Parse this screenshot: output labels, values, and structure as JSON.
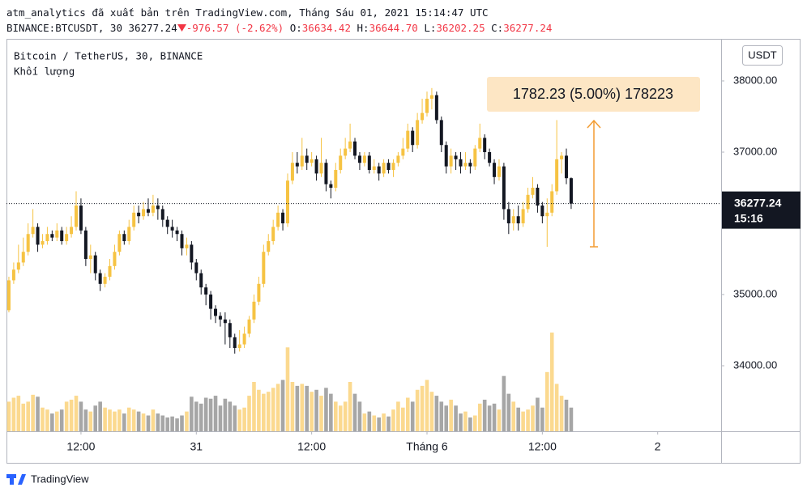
{
  "header": {
    "publisher": "atm_analytics đã xuất bản trên TradingView.com, Tháng Sáu 01, 2021 15:14:47 UTC",
    "symbol": "BINANCE:BTCUSDT, 30",
    "change": "-976.57 (-2.62%)",
    "ohlc": [
      {
        "label": "O:",
        "value": "36634.42"
      },
      {
        "label": "H:",
        "value": "36644.70"
      },
      {
        "label": "L:",
        "value": "36202.25"
      },
      {
        "label": "C:",
        "value": "36277.24"
      }
    ]
  },
  "footer": "TradingView",
  "chart_data": {
    "type": "candlestick",
    "title": "Bitcoin / TetherUS, 30, BINANCE",
    "volume_label": "Khối lượng",
    "currency": "USDT",
    "countdown": "15:16",
    "annotation": "1782.23 (5.00%) 178223",
    "up_color": "#f6c343",
    "down_color": "#131722",
    "volume_up_color": "#fbd98f",
    "volume_down_color": "#a6a6a6",
    "xlim": [
      -0.5,
      148.2
    ],
    "xticks": [
      {
        "value": 15,
        "label": "12:00"
      },
      {
        "value": 39,
        "label": "31"
      },
      {
        "value": 63,
        "label": "12:00"
      },
      {
        "value": 87,
        "label": "Tháng 6"
      },
      {
        "value": 111,
        "label": "12:00"
      },
      {
        "value": 135,
        "label": "2"
      }
    ],
    "ylim": [
      33080,
      38591
    ],
    "yticks": [
      {
        "value": 34000,
        "label": "34000.00"
      },
      {
        "value": 35000,
        "label": "35000.00"
      },
      {
        "value": 37000,
        "label": "37000.00"
      },
      {
        "value": 38000,
        "label": "38000.00"
      }
    ],
    "open": [
      34780,
      35200,
      35350,
      35450,
      35600,
      35850,
      35950,
      35700,
      35750,
      35850,
      35800,
      35900,
      35750,
      35850,
      35950,
      36250,
      35900,
      35500,
      35550,
      35300,
      35150,
      35250,
      35400,
      35600,
      35850,
      35750,
      35950,
      36150,
      36100,
      36200,
      36150,
      36250,
      36200,
      36050,
      35950,
      35900,
      35850,
      35650,
      35700,
      35450,
      35300,
      35100,
      35000,
      34800,
      34700,
      34650,
      34600,
      34400,
      34250,
      34300,
      34450,
      34650,
      34900,
      35150,
      35600,
      35750,
      35950,
      36150,
      36000,
      36600,
      36850,
      36800,
      36950,
      36850,
      36900,
      36700,
      36850,
      36550,
      36500,
      36750,
      36950,
      37050,
      37150,
      36950,
      36850,
      36950,
      36750,
      36800,
      36700,
      36850,
      36750,
      36850,
      36950,
      37050,
      37300,
      37100,
      37450,
      37550,
      37750,
      37800,
      37450,
      37100,
      36800,
      36950,
      36900,
      36800,
      36850,
      36800,
      37050,
      37200,
      37000,
      36850,
      36650,
      36800,
      36200,
      36000,
      36100,
      36000,
      36200,
      36400,
      36500,
      36250,
      36100,
      36150,
      36450,
      36900,
      36950,
      36634.42
    ],
    "high": [
      35250,
      35450,
      35700,
      35800,
      36000,
      36200,
      36000,
      35850,
      35950,
      35900,
      36000,
      35950,
      35950,
      36100,
      36450,
      36350,
      35950,
      35700,
      35600,
      35350,
      35300,
      35500,
      35700,
      35900,
      35900,
      36050,
      36250,
      36250,
      36300,
      36350,
      36400,
      36350,
      36250,
      36100,
      36050,
      35950,
      35900,
      35800,
      35750,
      35500,
      35350,
      35150,
      35050,
      34850,
      34750,
      34750,
      34650,
      34450,
      34500,
      34550,
      34700,
      35000,
      35250,
      35700,
      35850,
      36050,
      36250,
      36200,
      36700,
      37000,
      37000,
      37200,
      37050,
      37000,
      36950,
      37200,
      36900,
      36600,
      36850,
      37050,
      37200,
      37400,
      37200,
      37000,
      37000,
      37000,
      36900,
      36850,
      36900,
      36900,
      36900,
      37000,
      37200,
      37400,
      37350,
      37550,
      37750,
      37850,
      37900,
      37850,
      37500,
      37150,
      37050,
      37000,
      37000,
      37000,
      36900,
      37100,
      37400,
      37250,
      37050,
      36900,
      36900,
      36850,
      36300,
      36200,
      36250,
      36300,
      36500,
      36650,
      36550,
      36300,
      36350,
      36550,
      37450,
      37000,
      37050,
      36644.7
    ],
    "low": [
      34750,
      35150,
      35300,
      35400,
      35550,
      35800,
      35600,
      35650,
      35700,
      35750,
      35750,
      35700,
      35700,
      35800,
      35900,
      35850,
      35400,
      35300,
      35200,
      35050,
      35100,
      35200,
      35350,
      35550,
      35700,
      35700,
      35900,
      36000,
      36050,
      36100,
      36100,
      36050,
      35950,
      35850,
      35800,
      35750,
      35550,
      35550,
      35350,
      35200,
      35000,
      34850,
      34650,
      34600,
      34550,
      34300,
      34250,
      34170,
      34200,
      34250,
      34400,
      34600,
      34850,
      35100,
      35550,
      35700,
      35900,
      35900,
      35950,
      36550,
      36700,
      36750,
      36750,
      36800,
      36600,
      36650,
      36450,
      36350,
      36450,
      36700,
      36900,
      37000,
      36900,
      36750,
      36800,
      36700,
      36700,
      36600,
      36650,
      36700,
      36650,
      36800,
      36900,
      37000,
      37000,
      37050,
      37400,
      37500,
      37600,
      37400,
      37000,
      36700,
      36700,
      36750,
      36700,
      36750,
      36700,
      36750,
      37000,
      36900,
      36800,
      36550,
      36600,
      36050,
      35850,
      35900,
      35900,
      35950,
      36150,
      36350,
      36150,
      36000,
      35670,
      36100,
      36400,
      36700,
      36550,
      36202.25
    ],
    "close": [
      35200,
      35350,
      35450,
      35600,
      35850,
      35950,
      35700,
      35750,
      35850,
      35800,
      35900,
      35750,
      35850,
      35950,
      36250,
      35900,
      35500,
      35550,
      35300,
      35150,
      35250,
      35400,
      35600,
      35850,
      35750,
      35950,
      36150,
      36100,
      36200,
      36150,
      36250,
      36200,
      36050,
      35950,
      35900,
      35850,
      35650,
      35700,
      35450,
      35300,
      35100,
      35000,
      34800,
      34700,
      34650,
      34600,
      34400,
      34250,
      34300,
      34450,
      34650,
      34900,
      35150,
      35600,
      35750,
      35950,
      36150,
      36000,
      36600,
      36850,
      36800,
      36950,
      36850,
      36900,
      36700,
      36850,
      36550,
      36500,
      36750,
      36950,
      37050,
      37150,
      36950,
      36850,
      36950,
      36750,
      36800,
      36700,
      36850,
      36750,
      36850,
      36950,
      37050,
      37300,
      37100,
      37450,
      37550,
      37750,
      37800,
      37450,
      37100,
      36800,
      36950,
      36900,
      36800,
      36850,
      36800,
      37050,
      37200,
      37000,
      36850,
      36650,
      36800,
      36200,
      36000,
      36100,
      36000,
      36200,
      36400,
      36500,
      36250,
      36100,
      36150,
      36450,
      36900,
      36950,
      36634.42,
      36277.24
    ],
    "volume": [
      30,
      34,
      36,
      28,
      30,
      37,
      35,
      24,
      22,
      18,
      20,
      22,
      30,
      32,
      36,
      30,
      22,
      20,
      26,
      30,
      24,
      22,
      20,
      22,
      18,
      24,
      22,
      20,
      18,
      16,
      22,
      18,
      16,
      14,
      15,
      13,
      16,
      20,
      35,
      30,
      28,
      34,
      33,
      36,
      26,
      33,
      30,
      26,
      22,
      24,
      36,
      50,
      42,
      38,
      40,
      44,
      48,
      52,
      85,
      50,
      46,
      48,
      46,
      40,
      42,
      36,
      44,
      38,
      30,
      26,
      30,
      50,
      38,
      30,
      18,
      20,
      16,
      14,
      18,
      15,
      22,
      30,
      24,
      34,
      30,
      42,
      46,
      52,
      40,
      36,
      30,
      26,
      32,
      26,
      18,
      20,
      14,
      16,
      28,
      32,
      26,
      28,
      22,
      56,
      38,
      30,
      24,
      20,
      22,
      26,
      34,
      24,
      60,
      100,
      48,
      36,
      32,
      24
    ]
  }
}
